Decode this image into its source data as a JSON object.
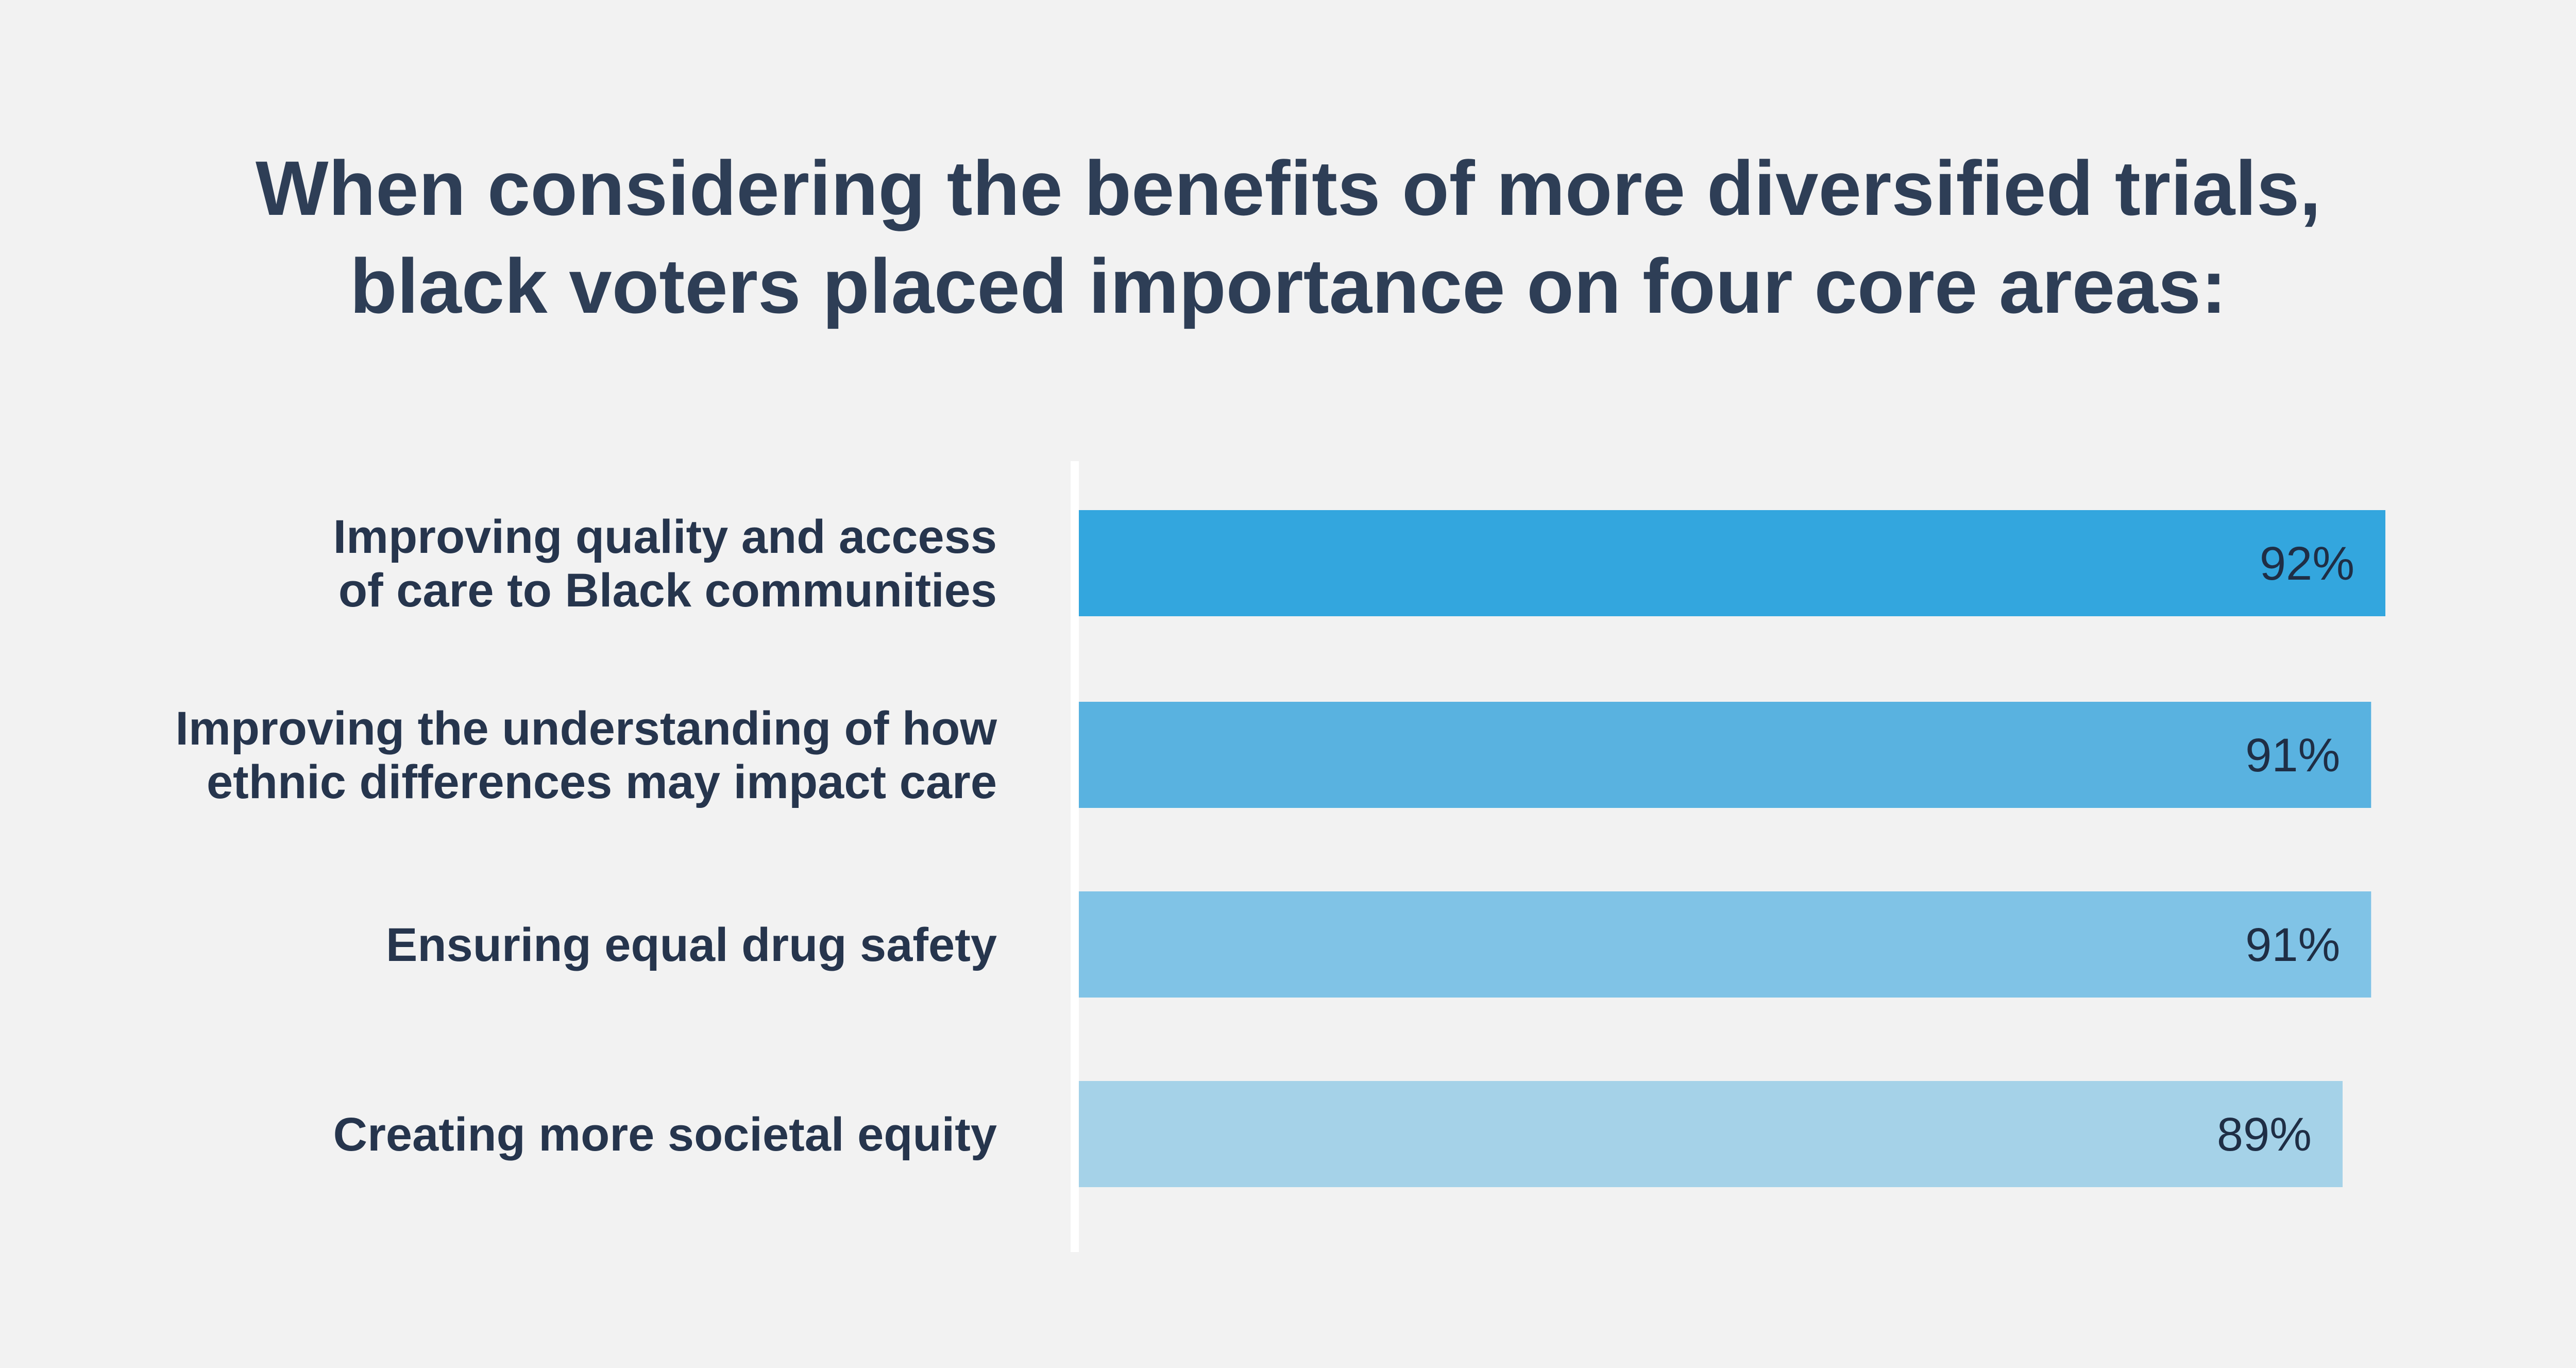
{
  "title_lines": [
    "When considering the benefits of more diversified trials,",
    "black voters placed importance on four core areas:"
  ],
  "chart_data": {
    "type": "bar",
    "orientation": "horizontal",
    "title": "When considering the benefits of more diversified trials, black voters placed importance on four core areas:",
    "xlabel": "",
    "ylabel": "",
    "grid": false,
    "legend": "none",
    "xlim": [
      0,
      92
    ],
    "categories": [
      [
        "Improving quality and access",
        "of care to Black communities"
      ],
      [
        "Improving the understanding of how",
        "ethnic differences may impact care"
      ],
      [
        "Ensuring equal drug safety"
      ],
      [
        "Creating more societal equity"
      ]
    ],
    "values": [
      92,
      91,
      91,
      89
    ],
    "value_labels": [
      "92%",
      "91%",
      "91%",
      "89%"
    ],
    "colors": [
      "#33a6de",
      "#59b2e0",
      "#80c3e6",
      "#a5d2e8"
    ],
    "axis_line_color": "#ffffff"
  }
}
